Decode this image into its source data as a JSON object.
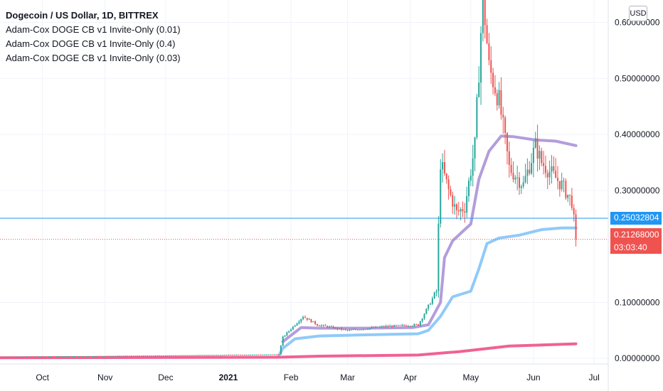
{
  "header": {
    "title": "Dogecoin / US Dollar, 1D, BITTREX",
    "indicators": [
      "Adam-Cox DOGE CB v1 Invite-Only (0.01)",
      "Adam-Cox DOGE CB v1 Invite-Only (0.4)",
      "Adam-Cox DOGE CB v1 Invite-Only (0.03)"
    ]
  },
  "currency_button": "USD",
  "price_tags": {
    "horizontal_line_value": "0.25032804",
    "last_price": "0.21268000",
    "countdown": "03:03:40"
  },
  "colors": {
    "up": "#26a69a",
    "down": "#ef5350",
    "band_purple": "#b39ddb",
    "band_blue": "#90caf9",
    "band_pink": "#f06292",
    "hline": "#2196f3"
  },
  "chart_data": {
    "type": "candlestick",
    "x_ticks": [
      "Oct",
      "Nov",
      "Dec",
      "2021",
      "Feb",
      "Mar",
      "Apr",
      "May",
      "Jun",
      "Jul"
    ],
    "y_ticks": [
      "0.60000000",
      "0.50000000",
      "0.40000000",
      "0.30000000",
      "0.10000000",
      "0.00000000"
    ],
    "y_tick_values": [
      0.6,
      0.5,
      0.4,
      0.3,
      0.1,
      0.0
    ],
    "ylim": [
      -0.01,
      0.64
    ],
    "x_start": "2020-09-10",
    "x_end": "2021-07-08",
    "horizontal_line": 0.25032804,
    "last_price": 0.21268,
    "price_key_points": [
      [
        "2020-09-10",
        0.0026
      ],
      [
        "2021-01-26",
        0.0072
      ],
      [
        "2021-01-28",
        0.038
      ],
      [
        "2021-02-07",
        0.075
      ],
      [
        "2021-02-14",
        0.06
      ],
      [
        "2021-03-01",
        0.05
      ],
      [
        "2021-03-20",
        0.057
      ],
      [
        "2021-04-05",
        0.06
      ],
      [
        "2021-04-14",
        0.12
      ],
      [
        "2021-04-16",
        0.35
      ],
      [
        "2021-04-20",
        0.3
      ],
      [
        "2021-04-24",
        0.26
      ],
      [
        "2021-04-28",
        0.27
      ],
      [
        "2021-05-03",
        0.38
      ],
      [
        "2021-05-07",
        0.65
      ],
      [
        "2021-05-10",
        0.52
      ],
      [
        "2021-05-15",
        0.46
      ],
      [
        "2021-05-20",
        0.34
      ],
      [
        "2021-05-27",
        0.31
      ],
      [
        "2021-06-02",
        0.38
      ],
      [
        "2021-06-05",
        0.35
      ],
      [
        "2021-06-15",
        0.31
      ],
      [
        "2021-06-20",
        0.28
      ],
      [
        "2021-06-22",
        0.213
      ]
    ],
    "series": [
      {
        "points": [
          [
            "2021-01-28",
            0.03
          ],
          [
            "2021-02-06",
            0.055
          ],
          [
            "2021-02-15",
            0.054
          ],
          [
            "2021-03-10",
            0.054
          ],
          [
            "2021-04-02",
            0.055
          ],
          [
            "2021-04-10",
            0.06
          ],
          [
            "2021-04-16",
            0.1
          ],
          [
            "2021-04-18",
            0.18
          ],
          [
            "2021-04-22",
            0.21
          ],
          [
            "2021-05-01",
            0.24
          ],
          [
            "2021-05-05",
            0.32
          ],
          [
            "2021-05-10",
            0.37
          ],
          [
            "2021-05-16",
            0.397
          ],
          [
            "2021-05-22",
            0.396
          ],
          [
            "2021-06-02",
            0.39
          ],
          [
            "2021-06-12",
            0.388
          ],
          [
            "2021-06-22",
            0.38
          ]
        ]
      },
      {
        "points": [
          [
            "2021-01-26",
            0.005
          ],
          [
            "2021-01-28",
            0.018
          ],
          [
            "2021-02-03",
            0.035
          ],
          [
            "2021-02-15",
            0.04
          ],
          [
            "2021-03-10",
            0.042
          ],
          [
            "2021-04-05",
            0.044
          ],
          [
            "2021-04-10",
            0.05
          ],
          [
            "2021-04-16",
            0.075
          ],
          [
            "2021-04-22",
            0.11
          ],
          [
            "2021-05-01",
            0.12
          ],
          [
            "2021-05-05",
            0.16
          ],
          [
            "2021-05-09",
            0.205
          ],
          [
            "2021-05-15",
            0.215
          ],
          [
            "2021-05-25",
            0.22
          ],
          [
            "2021-06-05",
            0.23
          ],
          [
            "2021-06-15",
            0.233
          ],
          [
            "2021-06-22",
            0.233
          ]
        ]
      },
      {
        "points": [
          [
            "2020-09-10",
            0.001
          ],
          [
            "2021-01-26",
            0.002
          ],
          [
            "2021-02-15",
            0.004
          ],
          [
            "2021-04-05",
            0.006
          ],
          [
            "2021-04-25",
            0.012
          ],
          [
            "2021-05-20",
            0.022
          ],
          [
            "2021-06-22",
            0.026
          ]
        ]
      }
    ]
  }
}
